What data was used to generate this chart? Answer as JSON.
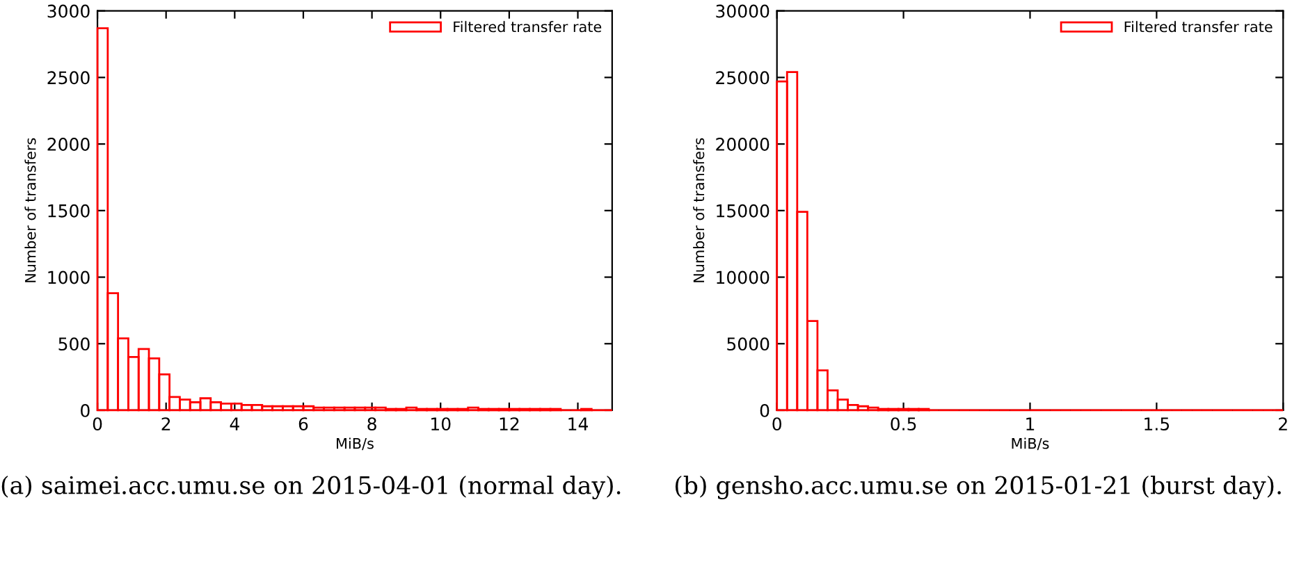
{
  "chart_data": [
    {
      "type": "histogram",
      "xlabel": "MiB/s",
      "ylabel": "Number of transfers",
      "bins": [
        0,
        0.3,
        0.6,
        0.9,
        1.2,
        1.5,
        1.8,
        2.1,
        2.4,
        2.7,
        3,
        3.3,
        3.6,
        3.9,
        4.2,
        4.5,
        4.8,
        5.1,
        5.4,
        5.7,
        6,
        6.3,
        6.6,
        6.9,
        7.2,
        7.5,
        7.8,
        8.1,
        8.4,
        8.7,
        9,
        9.3,
        9.6,
        9.9,
        10.2,
        10.5,
        10.8,
        11.1,
        11.4,
        11.7,
        12,
        12.3,
        12.6,
        12.9,
        13.2,
        13.5,
        13.8,
        14.1,
        14.4,
        14.7,
        15
      ],
      "series": [
        {
          "name": "Filtered transfer rate",
          "color": "#ff0000",
          "values": [
            2870,
            880,
            540,
            400,
            460,
            390,
            270,
            100,
            80,
            60,
            90,
            60,
            50,
            50,
            40,
            40,
            30,
            30,
            30,
            30,
            30,
            20,
            20,
            20,
            20,
            20,
            20,
            20,
            10,
            10,
            20,
            10,
            10,
            10,
            10,
            10,
            20,
            10,
            10,
            10,
            10,
            10,
            10,
            10,
            10,
            0,
            0,
            10,
            0,
            0
          ]
        }
      ],
      "xlim": [
        0,
        15
      ],
      "xticks": [
        0,
        2,
        4,
        6,
        8,
        10,
        12,
        14
      ],
      "ylim": [
        0,
        3000
      ],
      "yticks": [
        0,
        500,
        1000,
        1500,
        2000,
        2500,
        3000
      ],
      "legend": "top right",
      "grid": false,
      "annotations": [
        "(a) saimei.acc.umu.se on 2015-04-01 (normal day)."
      ]
    },
    {
      "type": "histogram",
      "xlabel": "MiB/s",
      "ylabel": "Number of transfers",
      "bins": [
        0,
        0.04,
        0.08,
        0.12,
        0.16,
        0.2,
        0.24,
        0.28,
        0.32,
        0.36,
        0.4,
        0.44,
        0.48,
        0.52,
        0.56,
        0.6,
        0.64,
        0.68,
        0.72,
        0.76,
        0.8,
        0.84,
        0.88,
        0.92,
        0.96,
        1,
        1.04,
        1.08,
        1.12,
        1.16,
        1.2,
        1.24,
        1.28,
        1.32,
        1.36,
        1.4,
        1.44,
        1.48,
        1.52,
        1.56,
        1.6,
        1.64,
        1.68,
        1.72,
        1.76,
        1.8,
        1.84,
        1.88,
        1.92,
        1.96,
        2
      ],
      "series": [
        {
          "name": "Filtered transfer rate",
          "color": "#ff0000",
          "values": [
            24700,
            25400,
            14900,
            6700,
            3000,
            1500,
            800,
            400,
            300,
            200,
            100,
            100,
            100,
            100,
            100,
            0,
            0,
            0,
            0,
            0,
            0,
            0,
            0,
            0,
            0,
            0,
            0,
            0,
            0,
            0,
            0,
            0,
            0,
            0,
            0,
            0,
            0,
            0,
            0,
            0,
            0,
            0,
            0,
            0,
            0,
            0,
            0,
            0,
            0,
            0
          ]
        }
      ],
      "xlim": [
        0,
        2
      ],
      "xticks": [
        0,
        0.5,
        1,
        1.5,
        2
      ],
      "ylim": [
        0,
        30000
      ],
      "yticks": [
        0,
        5000,
        10000,
        15000,
        20000,
        25000,
        30000
      ],
      "legend": "top right",
      "grid": false,
      "annotations": [
        "(b) gensho.acc.umu.se on 2015-01-21 (burst day)."
      ]
    }
  ]
}
